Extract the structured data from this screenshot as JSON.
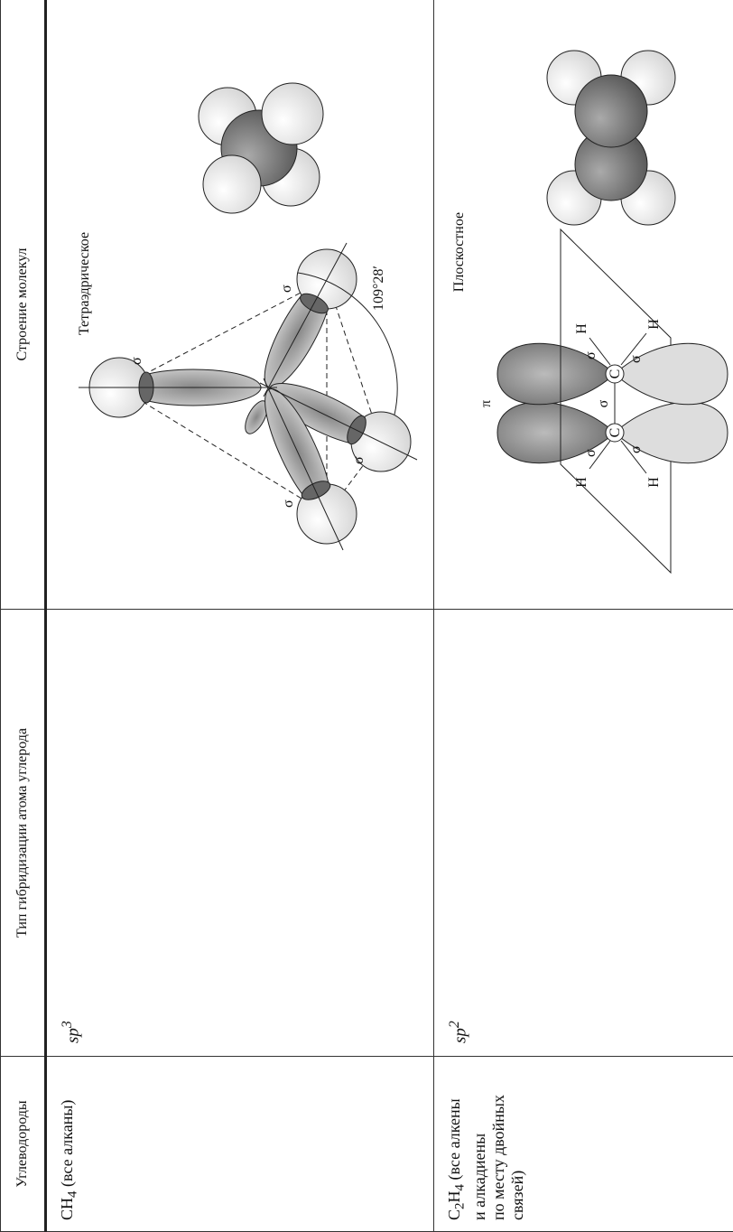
{
  "table": {
    "headers": [
      "Углеводороды",
      "Тип гибридизации атома углерода",
      "Строение молекул"
    ],
    "rows": [
      {
        "formula": [
          "CH",
          "4"
        ],
        "description": [
          " (все алканы)"
        ],
        "hybridization": [
          "sp",
          "3"
        ],
        "structure": {
          "shape": "Тетраэдрическое",
          "labels": [
            "σ",
            "σ",
            "σ",
            "σ",
            "109°28′"
          ]
        }
      },
      {
        "formula": [
          "C",
          "2",
          "H",
          "4"
        ],
        "description": [
          " (все алкены",
          "и алкадиены",
          "по месту двойных",
          "связей)"
        ],
        "hybridization": [
          "sp",
          "2"
        ],
        "structure": {
          "shape": "Плоскостное",
          "labels": [
            "π",
            "σ",
            "C",
            "C",
            "σ",
            "σ",
            "σ",
            "σ",
            "H",
            "H",
            "H",
            "H"
          ]
        }
      }
    ]
  }
}
